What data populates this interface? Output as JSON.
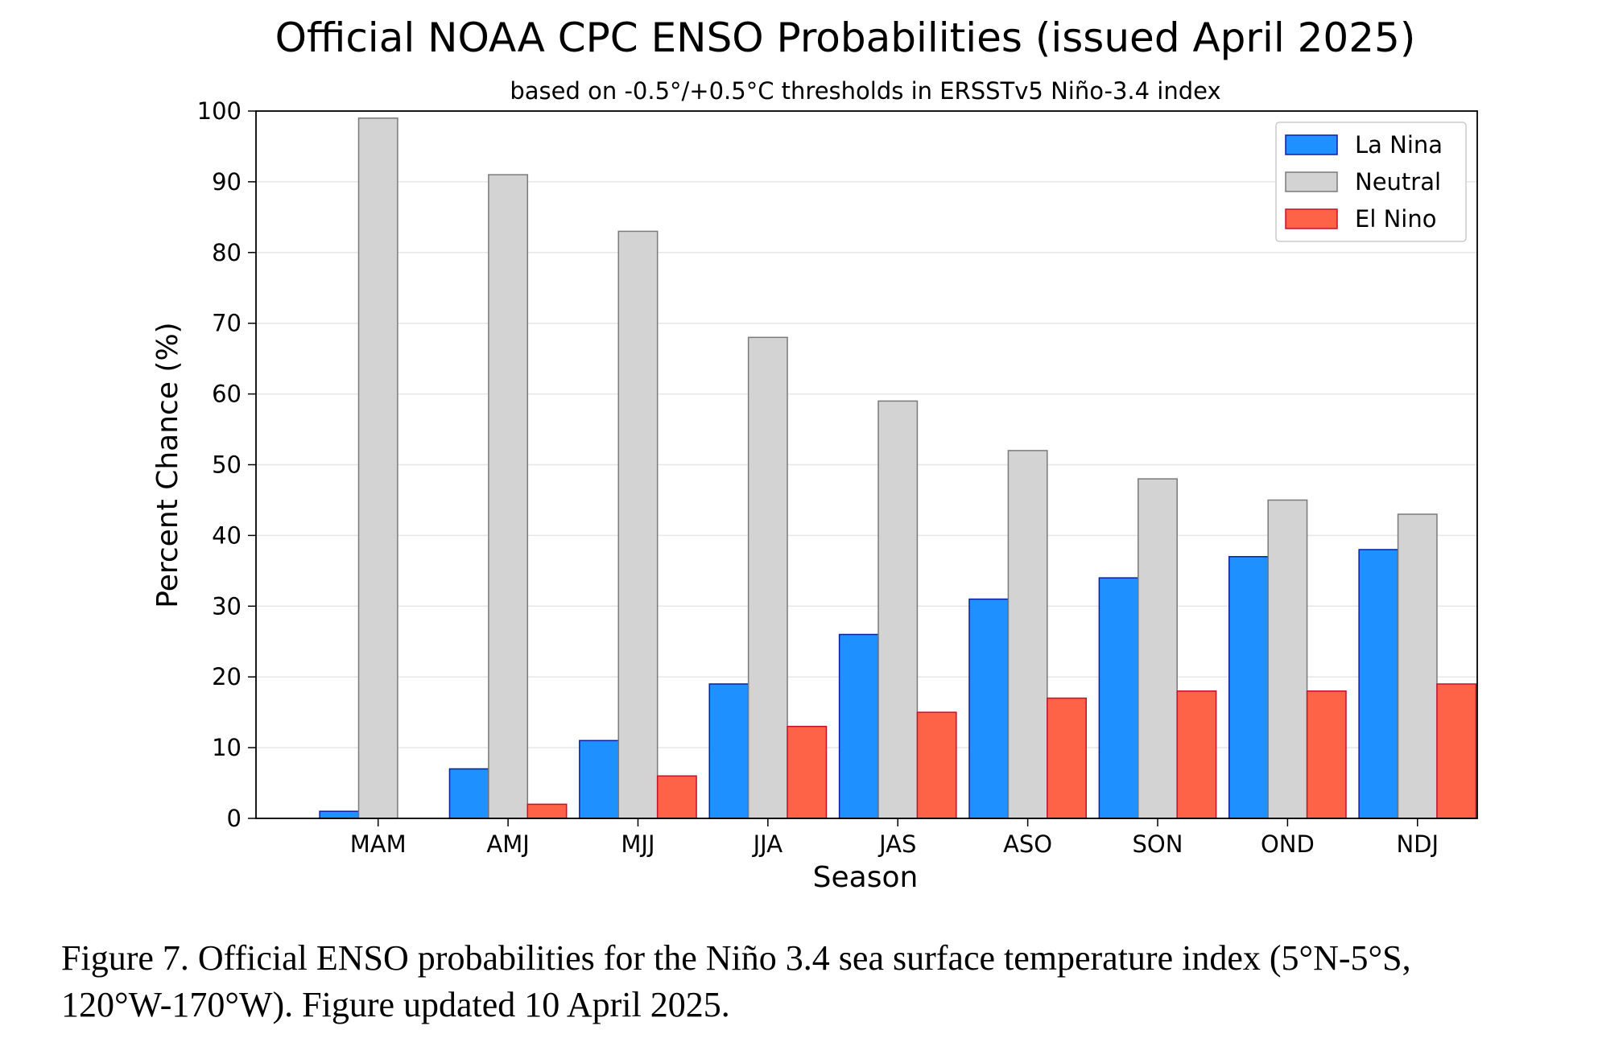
{
  "chart_data": {
    "type": "bar",
    "title": "Official NOAA CPC ENSO Probabilities (issued April 2025)",
    "subtitle": "based on -0.5°/+0.5°C thresholds in ERSSTv5 Niño-3.4 index",
    "xlabel": "Season",
    "ylabel": "Percent Chance (%)",
    "ylim": [
      0,
      100
    ],
    "yticks": [
      0,
      10,
      20,
      30,
      40,
      50,
      60,
      70,
      80,
      90,
      100
    ],
    "grid": true,
    "legend_position": "top-right",
    "categories": [
      "MAM",
      "AMJ",
      "MJJ",
      "JJA",
      "JAS",
      "ASO",
      "SON",
      "OND",
      "NDJ"
    ],
    "series": [
      {
        "name": "La Nina",
        "color": "#1e90ff",
        "edge": "#0a1f9e",
        "values": [
          1,
          7,
          11,
          19,
          26,
          31,
          34,
          37,
          38
        ]
      },
      {
        "name": "Neutral",
        "color": "#d3d3d3",
        "edge": "#7a7a7a",
        "values": [
          99,
          91,
          83,
          68,
          59,
          52,
          48,
          45,
          43
        ]
      },
      {
        "name": "El Nino",
        "color": "#ff6347",
        "edge": "#c8102e",
        "values": [
          0,
          2,
          6,
          13,
          15,
          17,
          18,
          18,
          19
        ]
      }
    ]
  },
  "caption": {
    "line1": "Figure 7. Official ENSO probabilities for the Niño 3.4 sea surface temperature index (5°N-5°S,",
    "line2": "120°W-170°W). Figure updated 10 April 2025."
  }
}
